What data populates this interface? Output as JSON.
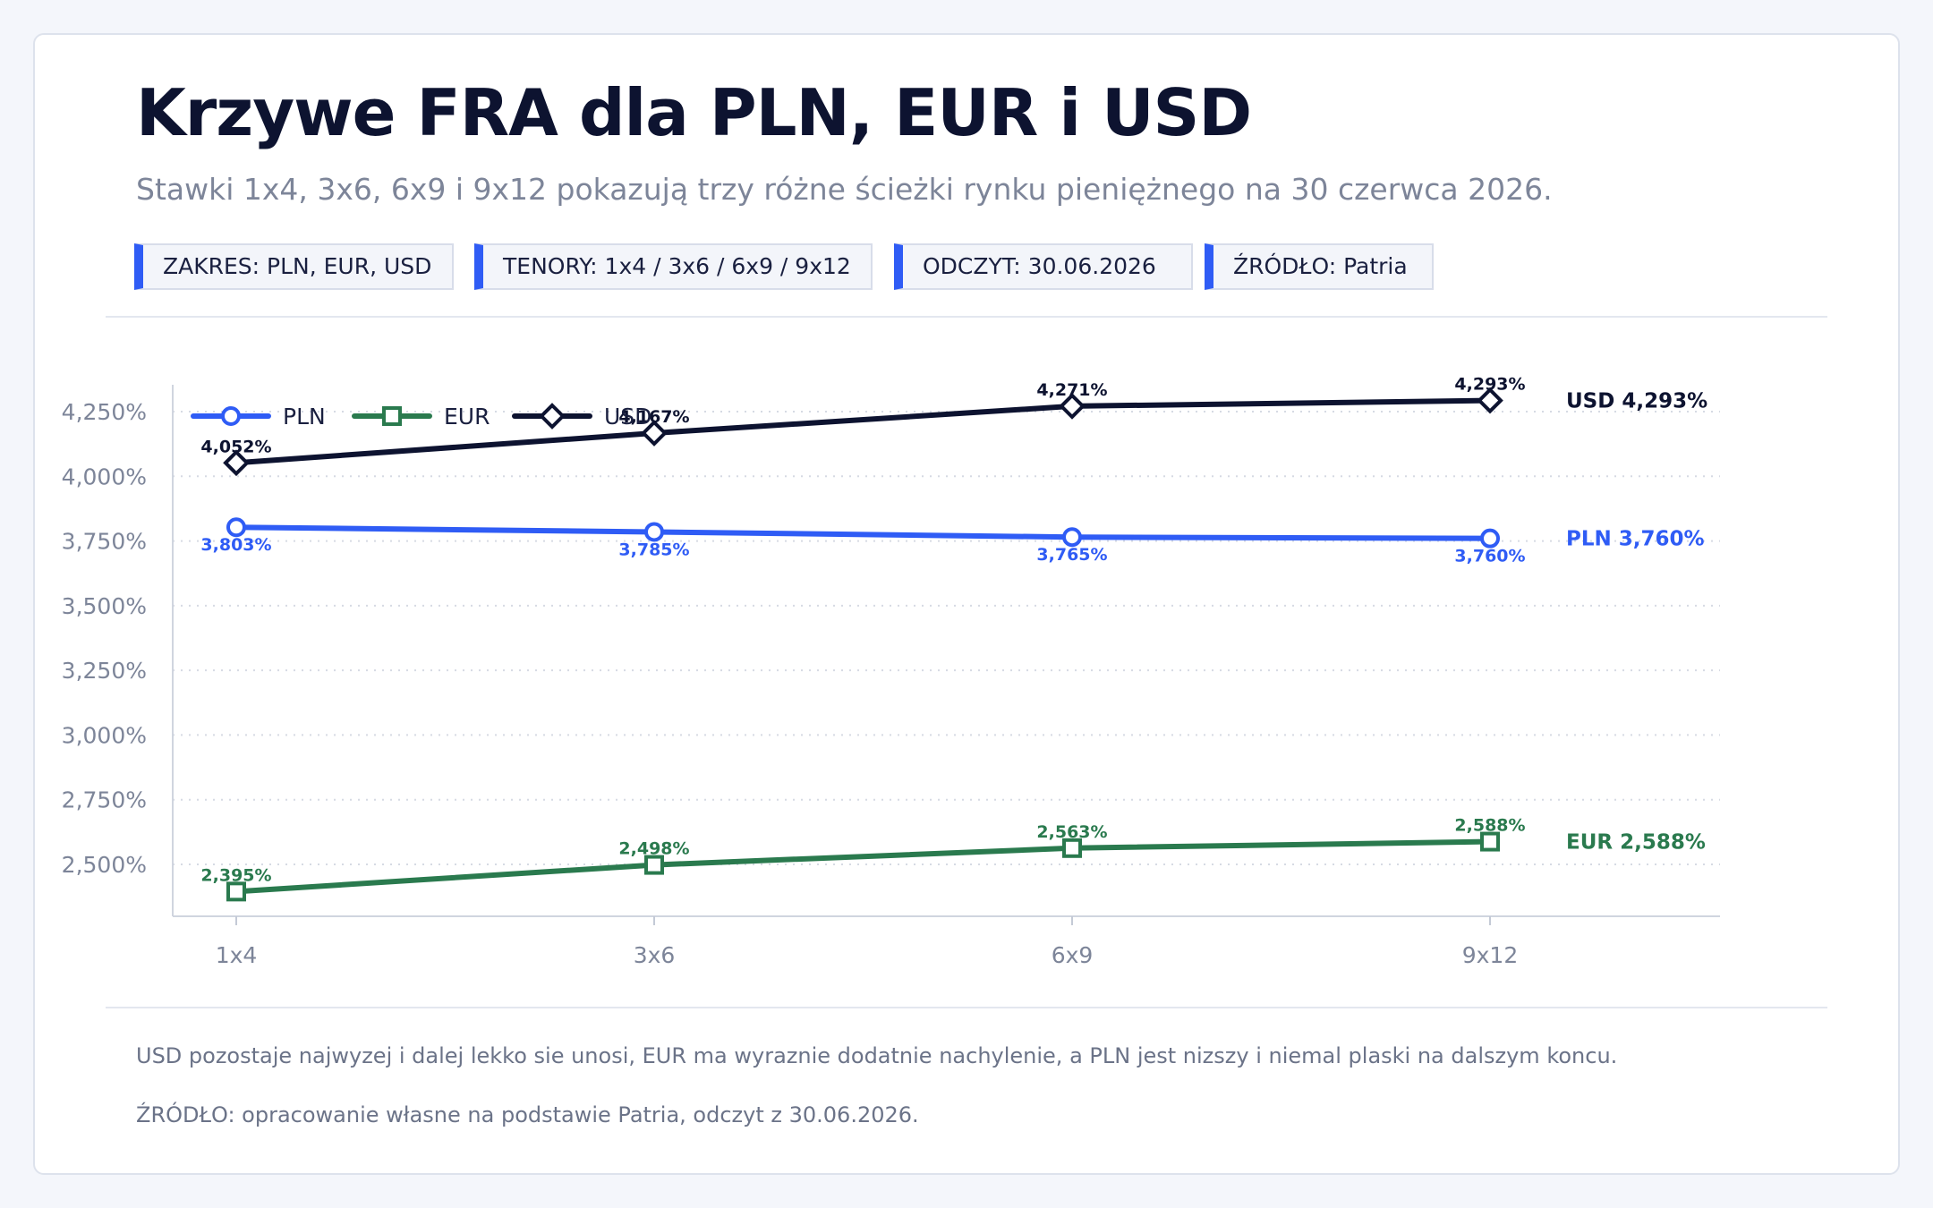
{
  "header": {
    "title": "Krzywe FRA dla PLN, EUR i USD",
    "subtitle": "Stawki 1x4, 3x6, 6x9 i 9x12 pokazują trzy różne ścieżki rynku pieniężnego na 30 czerwca 2026."
  },
  "chips": [
    {
      "label": "ZAKRES: PLN, EUR, USD"
    },
    {
      "label": "TENORY: 1x4 / 3x6 / 6x9 / 9x12"
    },
    {
      "label": "ODCZYT: 30.06.2026"
    },
    {
      "label": "ŹRÓDŁO: Patria"
    }
  ],
  "colors": {
    "accent": "#2f5cf5",
    "pln": "#2f5cf5",
    "eur": "#2a7a4e",
    "usd": "#0d1330"
  },
  "chart_data": {
    "type": "line",
    "categories": [
      "1x4",
      "3x6",
      "6x9",
      "9x12"
    ],
    "ylim": [
      2.38,
      4.47
    ],
    "yticks": [
      2.5,
      2.75,
      3.0,
      3.25,
      3.5,
      3.75,
      4.0,
      4.25
    ],
    "ytick_labels": [
      "2,500%",
      "2,750%",
      "3,000%",
      "3,250%",
      "3,500%",
      "3,750%",
      "4,000%",
      "4,250%"
    ],
    "grid": true,
    "legend_position": "top-left",
    "series": [
      {
        "name": "PLN",
        "color": "#2f5cf5",
        "marker": "circle",
        "label_position": "below",
        "values": [
          3.803,
          3.785,
          3.765,
          3.76
        ],
        "labels": [
          "3,803%",
          "3,785%",
          "3,765%",
          "3,760%"
        ],
        "end_label": "PLN 3,760%"
      },
      {
        "name": "EUR",
        "color": "#2a7a4e",
        "marker": "square",
        "label_position": "above",
        "values": [
          2.395,
          2.498,
          2.563,
          2.588
        ],
        "labels": [
          "2,395%",
          "2,498%",
          "2,563%",
          "2,588%"
        ],
        "end_label": "EUR 2,588%"
      },
      {
        "name": "USD",
        "color": "#0d1330",
        "marker": "diamond",
        "label_position": "above",
        "values": [
          4.052,
          4.167,
          4.271,
          4.293
        ],
        "labels": [
          "4,052%",
          "4,167%",
          "4,271%",
          "4,293%"
        ],
        "end_label": "USD 4,293%"
      }
    ]
  },
  "footer": {
    "note": "USD pozostaje najwyzej i dalej lekko sie unosi, EUR ma wyraznie dodatnie nachylenie, a PLN jest nizszy i niemal plaski na dalszym koncu.",
    "source": "ŹRÓDŁO: opracowanie własne na podstawie Patria, odczyt z 30.06.2026."
  }
}
